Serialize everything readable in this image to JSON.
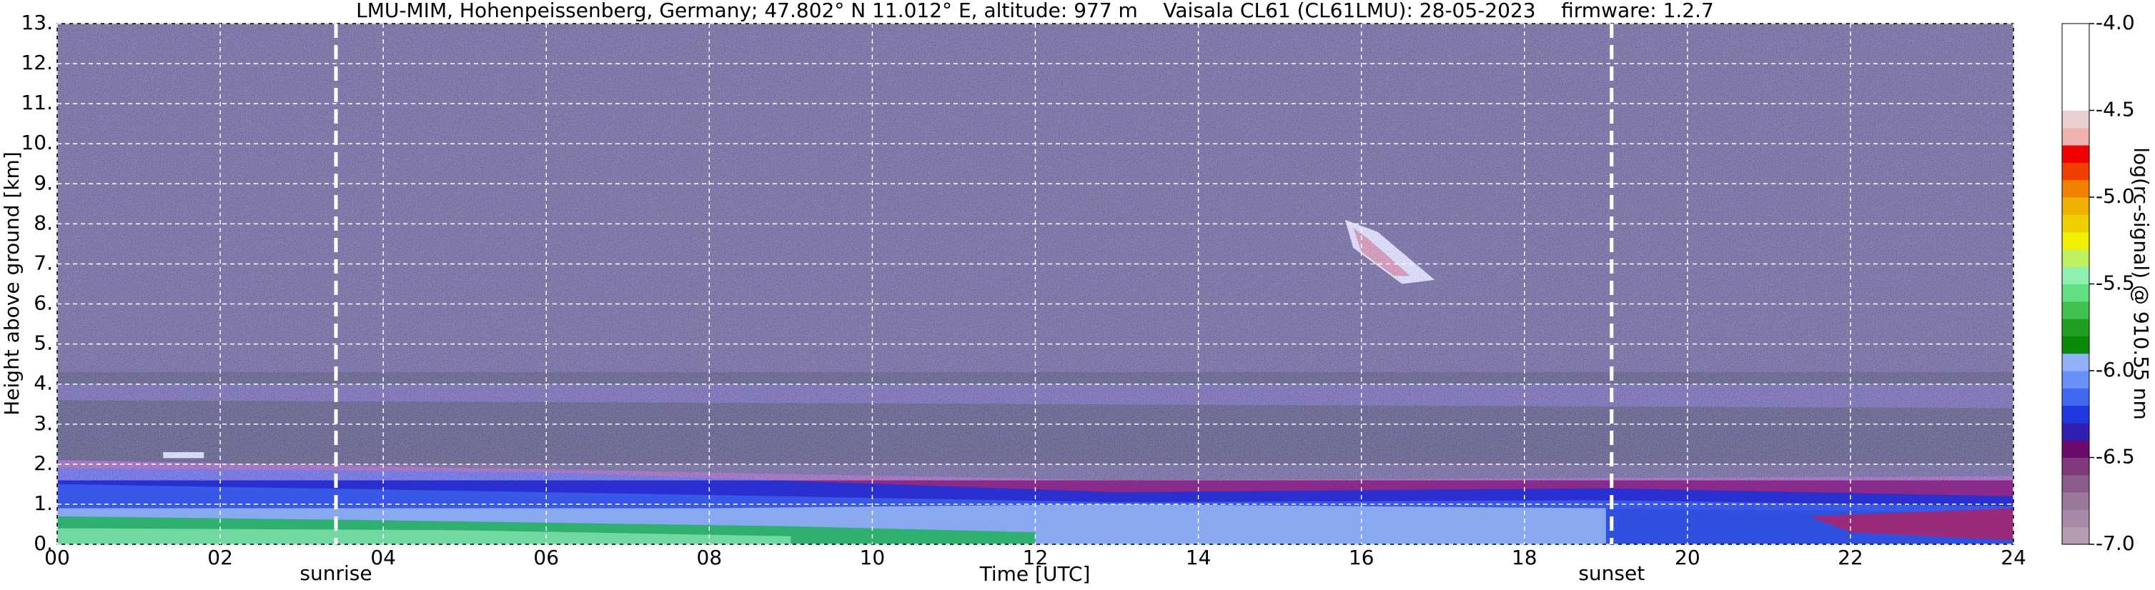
{
  "chart_data": {
    "type": "heatmap",
    "title": "LMU-MIM, Hohenpeissenberg, Germany; 47.802° N 11.012° E, altitude: 977 m    Vaisala CL61 (CL61LMU): 28-05-2023    firmware: 1.2.7",
    "xlabel": "Time [UTC]",
    "ylabel": "Height above ground [km]",
    "xlim": [
      0,
      24
    ],
    "ylim": [
      0,
      13
    ],
    "xticks": [
      {
        "value": 0,
        "label": "00"
      },
      {
        "value": 2,
        "label": "02"
      },
      {
        "value": 4,
        "label": "04"
      },
      {
        "value": 6,
        "label": "06"
      },
      {
        "value": 8,
        "label": "08"
      },
      10,
      12,
      14,
      16,
      18,
      20,
      22,
      24
    ],
    "yticks": [
      {
        "value": 0,
        "label": "0."
      },
      {
        "value": 1,
        "label": "1."
      },
      {
        "value": 2,
        "label": "2."
      },
      {
        "value": 3,
        "label": "3."
      },
      {
        "value": 4,
        "label": "4."
      },
      {
        "value": 5,
        "label": "5."
      },
      {
        "value": 6,
        "label": "6."
      },
      {
        "value": 7,
        "label": "7."
      },
      {
        "value": 8,
        "label": "8."
      },
      {
        "value": 9,
        "label": "9."
      },
      {
        "value": 10,
        "label": "10."
      },
      {
        "value": 11,
        "label": "11."
      },
      {
        "value": 12,
        "label": "12."
      },
      {
        "value": 13,
        "label": "13."
      }
    ],
    "grid": true,
    "grid_color": "#ffffff",
    "annotations": [
      {
        "text": "sunrise",
        "x": 3.42
      },
      {
        "text": "sunset",
        "x": 19.07
      }
    ],
    "colorbar": {
      "label": "log(rc-signal) @ 910.55 nm",
      "lim": [
        -7.0,
        -4.0
      ],
      "ticks": [
        {
          "value": -7.0,
          "label": "-7.0"
        },
        {
          "value": -6.5,
          "label": "-6.5"
        },
        {
          "value": -6.0,
          "label": "-6.0"
        },
        {
          "value": -5.5,
          "label": "-5.5"
        },
        {
          "value": -5.0,
          "label": "-5.0"
        },
        {
          "value": -4.5,
          "label": "-4.5"
        },
        {
          "value": -4.0,
          "label": "-4.0"
        }
      ],
      "colors": [
        "#b39db3",
        "#a68aa6",
        "#9a789a",
        "#8c5c8c",
        "#7d3a7d",
        "#6a0a6a",
        "#3020b0",
        "#2038e0",
        "#4068f0",
        "#6890f8",
        "#90b0f8",
        "#0a8a0a",
        "#20a020",
        "#40c050",
        "#60e080",
        "#90f0b0",
        "#c0f060",
        "#f0f000",
        "#f0d000",
        "#f0b000",
        "#f08000",
        "#f04000",
        "#f00000",
        "#f0b0b0",
        "#e8d0d0",
        "#ffffff",
        "#ffffff",
        "#ffffff",
        "#ffffff",
        "#ffffff"
      ]
    }
  }
}
